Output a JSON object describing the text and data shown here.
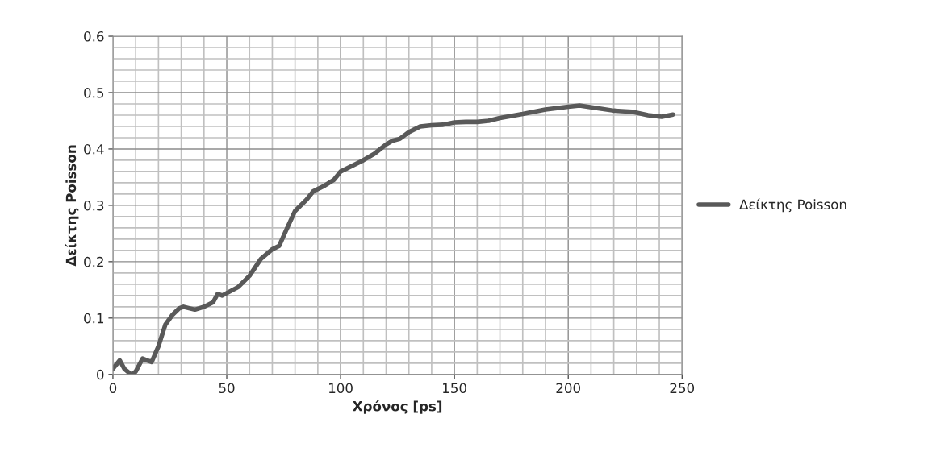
{
  "chart_data": {
    "type": "line",
    "xlabel": "Χρόνος [ps]",
    "ylabel": "Δείκτης Poisson",
    "xlim": [
      0,
      250
    ],
    "xticks": [
      0,
      50,
      100,
      150,
      200,
      250
    ],
    "ylim": [
      0,
      0.6
    ],
    "yticks": [
      0,
      0.1,
      0.2,
      0.3,
      0.4,
      0.5,
      0.6
    ],
    "grid": true,
    "legend": "right",
    "marker": "none",
    "line_style": "solid",
    "series": [
      {
        "name": "Δείκτης Poisson",
        "color": "#595959",
        "x": [
          0,
          3,
          5,
          8,
          10,
          13,
          15,
          17,
          20,
          23,
          26,
          29,
          31,
          36,
          40,
          44,
          46,
          48,
          55,
          60,
          65,
          70,
          73,
          76,
          80,
          85,
          88,
          93,
          97,
          100,
          105,
          110,
          115,
          120,
          123,
          126,
          130,
          135,
          140,
          145,
          150,
          155,
          160,
          165,
          170,
          180,
          190,
          200,
          205,
          212,
          220,
          228,
          235,
          241,
          246
        ],
        "values": [
          0.01,
          0.025,
          0.01,
          0.0,
          0.005,
          0.028,
          0.025,
          0.022,
          0.05,
          0.088,
          0.105,
          0.117,
          0.12,
          0.115,
          0.12,
          0.128,
          0.143,
          0.14,
          0.155,
          0.175,
          0.205,
          0.222,
          0.228,
          0.255,
          0.29,
          0.31,
          0.325,
          0.335,
          0.345,
          0.36,
          0.37,
          0.38,
          0.392,
          0.408,
          0.415,
          0.418,
          0.43,
          0.44,
          0.442,
          0.443,
          0.447,
          0.448,
          0.448,
          0.45,
          0.455,
          0.462,
          0.47,
          0.475,
          0.477,
          0.473,
          0.468,
          0.466,
          0.46,
          0.457,
          0.461
        ]
      }
    ]
  }
}
